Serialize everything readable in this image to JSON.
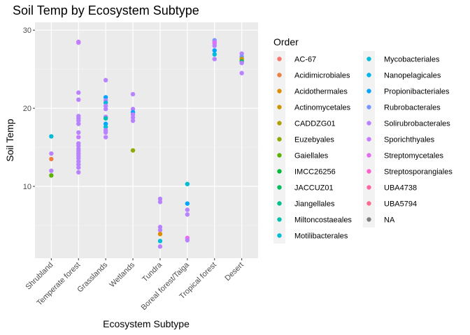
{
  "chart_data": {
    "type": "scatter",
    "title": "Soil Temp by Ecosystem Subtype",
    "xlabel": "Ecosystem Subtype",
    "ylabel": "Soil Temp",
    "categories": [
      "Shrubland",
      "Temperate forest",
      "Grasslands",
      "Wetlands",
      "Tundra",
      "Boreal forest/Taiga",
      "Tropical forest",
      "Desert"
    ],
    "ylim": [
      0.8,
      31
    ],
    "yticks": [
      10,
      20,
      30
    ],
    "grid": true,
    "legend_position": "right",
    "legend": {
      "title": "Order",
      "entries": [
        {
          "name": "AC-67",
          "color": "#F8766D"
        },
        {
          "name": "Acidimicrobiales",
          "color": "#EE8043"
        },
        {
          "name": "Acidothermales",
          "color": "#DE8C00"
        },
        {
          "name": "Actinomycetales",
          "color": "#C99800"
        },
        {
          "name": "CADDZG01",
          "color": "#B0A100"
        },
        {
          "name": "Euzebyales",
          "color": "#8FAA00"
        },
        {
          "name": "Gaiellales",
          "color": "#5BB300"
        },
        {
          "name": "IMCC26256",
          "color": "#00BA38"
        },
        {
          "name": "JACCUZ01",
          "color": "#00BD5F"
        },
        {
          "name": "Jiangellales",
          "color": "#00C08B"
        },
        {
          "name": "Miltoncostaeales",
          "color": "#00C0AF"
        },
        {
          "name": "Motilibacterales",
          "color": "#00BCD6"
        },
        {
          "name": "Mycobacteriales",
          "color": "#00BCD8"
        },
        {
          "name": "Nanopelagicales",
          "color": "#00B4EF"
        },
        {
          "name": "Propionibacteriales",
          "color": "#00A5FF"
        },
        {
          "name": "Rubrobacterales",
          "color": "#7997FF"
        },
        {
          "name": "Solirubrobacterales",
          "color": "#B983FF"
        },
        {
          "name": "Sporichthyales",
          "color": "#C77CFF"
        },
        {
          "name": "Streptomycetales",
          "color": "#E76BF3"
        },
        {
          "name": "Streptosporangiales",
          "color": "#FD61D1"
        },
        {
          "name": "UBA4738",
          "color": "#FF67A4"
        },
        {
          "name": "UBA5794",
          "color": "#FF6C90"
        },
        {
          "name": "NA",
          "color": "#7F7F7F"
        }
      ]
    },
    "points": [
      {
        "x": "Shrubland",
        "y": 16.4,
        "color": "#00BCD6"
      },
      {
        "x": "Shrubland",
        "y": 14.2,
        "color": "#B983FF"
      },
      {
        "x": "Shrubland",
        "y": 13.5,
        "color": "#EE8043"
      },
      {
        "x": "Shrubland",
        "y": 12.0,
        "color": "#B983FF"
      },
      {
        "x": "Shrubland",
        "y": 11.4,
        "color": "#5BB300"
      },
      {
        "x": "Temperate forest",
        "y": 28.5,
        "color": "#B983FF"
      },
      {
        "x": "Temperate forest",
        "y": 28.4,
        "color": "#C77CFF"
      },
      {
        "x": "Temperate forest",
        "y": 22.0,
        "color": "#B983FF"
      },
      {
        "x": "Temperate forest",
        "y": 21.1,
        "color": "#B983FF"
      },
      {
        "x": "Temperate forest",
        "y": 19.0,
        "color": "#B983FF"
      },
      {
        "x": "Temperate forest",
        "y": 18.7,
        "color": "#B983FF"
      },
      {
        "x": "Temperate forest",
        "y": 18.4,
        "color": "#B983FF"
      },
      {
        "x": "Temperate forest",
        "y": 18.0,
        "color": "#B983FF"
      },
      {
        "x": "Temperate forest",
        "y": 16.9,
        "color": "#B983FF"
      },
      {
        "x": "Temperate forest",
        "y": 16.3,
        "color": "#C77CFF"
      },
      {
        "x": "Temperate forest",
        "y": 15.5,
        "color": "#B983FF"
      },
      {
        "x": "Temperate forest",
        "y": 15.2,
        "color": "#B983FF"
      },
      {
        "x": "Temperate forest",
        "y": 14.8,
        "color": "#B983FF"
      },
      {
        "x": "Temperate forest",
        "y": 14.5,
        "color": "#B983FF"
      },
      {
        "x": "Temperate forest",
        "y": 14.2,
        "color": "#B983FF"
      },
      {
        "x": "Temperate forest",
        "y": 13.9,
        "color": "#B983FF"
      },
      {
        "x": "Temperate forest",
        "y": 13.6,
        "color": "#B983FF"
      },
      {
        "x": "Temperate forest",
        "y": 13.2,
        "color": "#B983FF"
      },
      {
        "x": "Temperate forest",
        "y": 12.8,
        "color": "#B983FF"
      },
      {
        "x": "Temperate forest",
        "y": 12.4,
        "color": "#B983FF"
      },
      {
        "x": "Temperate forest",
        "y": 11.8,
        "color": "#B983FF"
      },
      {
        "x": "Grasslands",
        "y": 23.6,
        "color": "#B983FF"
      },
      {
        "x": "Grasslands",
        "y": 21.4,
        "color": "#00A5FF"
      },
      {
        "x": "Grasslands",
        "y": 21.0,
        "color": "#B983FF"
      },
      {
        "x": "Grasslands",
        "y": 20.7,
        "color": "#00BCD6"
      },
      {
        "x": "Grasslands",
        "y": 20.3,
        "color": "#B983FF"
      },
      {
        "x": "Grasslands",
        "y": 19.9,
        "color": "#B983FF"
      },
      {
        "x": "Grasslands",
        "y": 18.9,
        "color": "#B983FF"
      },
      {
        "x": "Grasslands",
        "y": 18.7,
        "color": "#00C0AF"
      },
      {
        "x": "Grasslands",
        "y": 18.0,
        "color": "#00A5FF"
      },
      {
        "x": "Grasslands",
        "y": 17.6,
        "color": "#00BCD6"
      },
      {
        "x": "Grasslands",
        "y": 17.2,
        "color": "#B983FF"
      },
      {
        "x": "Grasslands",
        "y": 16.9,
        "color": "#B983FF"
      },
      {
        "x": "Grasslands",
        "y": 16.3,
        "color": "#B983FF"
      },
      {
        "x": "Wetlands",
        "y": 21.8,
        "color": "#B983FF"
      },
      {
        "x": "Wetlands",
        "y": 19.9,
        "color": "#B983FF"
      },
      {
        "x": "Wetlands",
        "y": 19.5,
        "color": "#00A5FF"
      },
      {
        "x": "Wetlands",
        "y": 19.2,
        "color": "#B983FF"
      },
      {
        "x": "Wetlands",
        "y": 18.8,
        "color": "#B983FF"
      },
      {
        "x": "Wetlands",
        "y": 18.4,
        "color": "#B983FF"
      },
      {
        "x": "Wetlands",
        "y": 14.6,
        "color": "#8FAA00"
      },
      {
        "x": "Tundra",
        "y": 8.4,
        "color": "#B983FF"
      },
      {
        "x": "Tundra",
        "y": 8.0,
        "color": "#B983FF"
      },
      {
        "x": "Tundra",
        "y": 4.8,
        "color": "#B983FF"
      },
      {
        "x": "Tundra",
        "y": 4.4,
        "color": "#B983FF"
      },
      {
        "x": "Tundra",
        "y": 3.9,
        "color": "#DE8C00"
      },
      {
        "x": "Tundra",
        "y": 3.0,
        "color": "#00BCD6"
      },
      {
        "x": "Tundra",
        "y": 2.3,
        "color": "#B983FF"
      },
      {
        "x": "Boreal forest/Taiga",
        "y": 10.3,
        "color": "#00BCD6"
      },
      {
        "x": "Boreal forest/Taiga",
        "y": 7.8,
        "color": "#00A5FF"
      },
      {
        "x": "Boreal forest/Taiga",
        "y": 7.0,
        "color": "#B983FF"
      },
      {
        "x": "Boreal forest/Taiga",
        "y": 6.4,
        "color": "#B983FF"
      },
      {
        "x": "Boreal forest/Taiga",
        "y": 3.4,
        "color": "#E76BF3"
      },
      {
        "x": "Boreal forest/Taiga",
        "y": 3.1,
        "color": "#B983FF"
      },
      {
        "x": "Tropical forest",
        "y": 28.7,
        "color": "#7997FF"
      },
      {
        "x": "Tropical forest",
        "y": 28.5,
        "color": "#B983FF"
      },
      {
        "x": "Tropical forest",
        "y": 28.3,
        "color": "#E76BF3"
      },
      {
        "x": "Tropical forest",
        "y": 28.0,
        "color": "#B983FF"
      },
      {
        "x": "Tropical forest",
        "y": 27.4,
        "color": "#00A5FF"
      },
      {
        "x": "Tropical forest",
        "y": 26.9,
        "color": "#00BCD6"
      },
      {
        "x": "Tropical forest",
        "y": 26.3,
        "color": "#B983FF"
      },
      {
        "x": "Desert",
        "y": 27.0,
        "color": "#B983FF"
      },
      {
        "x": "Desert",
        "y": 26.6,
        "color": "#7997FF"
      },
      {
        "x": "Desert",
        "y": 26.3,
        "color": "#C99800"
      },
      {
        "x": "Desert",
        "y": 26.0,
        "color": "#00BD5F"
      },
      {
        "x": "Desert",
        "y": 25.8,
        "color": "#B983FF"
      },
      {
        "x": "Desert",
        "y": 24.5,
        "color": "#B983FF"
      }
    ]
  }
}
